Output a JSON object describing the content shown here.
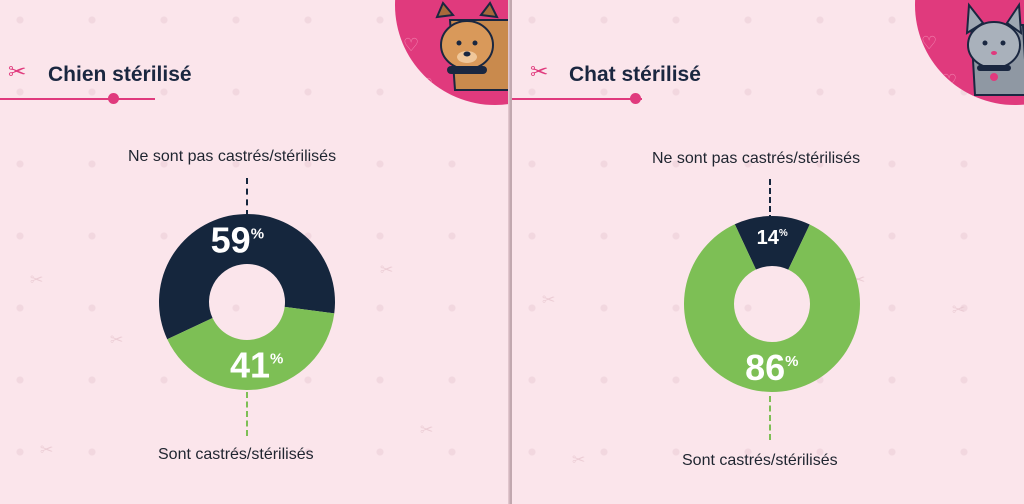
{
  "colors": {
    "background": "#fbe5eb",
    "accent": "#e03a7d",
    "navy": "#15263d",
    "green": "#7dbf55",
    "text": "#1f2530"
  },
  "panels": [
    {
      "title": "Chien stérilisé",
      "animal_icon": "dog-icon",
      "top_label": "Ne sont pas castrés/stérilisés",
      "bottom_label": "Sont castrés/stérilisés"
    },
    {
      "title": "Chat stérilisé",
      "animal_icon": "cat-icon",
      "top_label": "Ne sont pas castrés/stérilisés",
      "bottom_label": "Sont castrés/stérilisés"
    }
  ],
  "chart_data": [
    {
      "type": "pie",
      "title": "Chien stérilisé",
      "categories": [
        "Ne sont pas castrés/stérilisés",
        "Sont castrés/stérilisés"
      ],
      "values": [
        59,
        41
      ],
      "value_labels": [
        "59",
        "41"
      ],
      "unit": "%",
      "colors": [
        "#15263d",
        "#7dbf55"
      ],
      "donut": true
    },
    {
      "type": "pie",
      "title": "Chat stérilisé",
      "categories": [
        "Ne sont pas castrés/stérilisés",
        "Sont castrés/stérilisés"
      ],
      "values": [
        14,
        86
      ],
      "value_labels": [
        "14",
        "86"
      ],
      "unit": "%",
      "colors": [
        "#15263d",
        "#7dbf55"
      ],
      "donut": true
    }
  ]
}
